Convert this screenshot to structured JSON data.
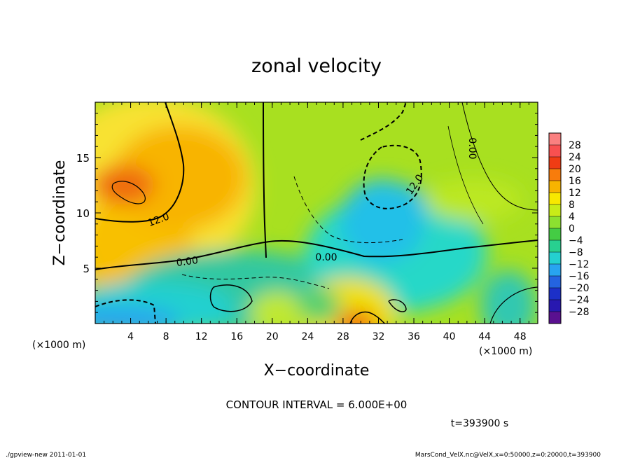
{
  "chart_data": {
    "type": "heatmap",
    "title": "zonal velocity",
    "xlabel": "X−coordinate",
    "ylabel": "Z−coordinate",
    "x_unit_label": "(×1000 m)",
    "y_unit_label": "(×1000 m)",
    "xlim": [
      0,
      50
    ],
    "ylim": [
      0,
      20
    ],
    "x_ticks": [
      "4",
      "8",
      "12",
      "16",
      "20",
      "24",
      "28",
      "32",
      "36",
      "40",
      "44",
      "48"
    ],
    "y_ticks": [
      "5",
      "10",
      "15"
    ],
    "contour_interval_text": "CONTOUR INTERVAL = 6.000E+00",
    "time_text": "t=393900 s",
    "contour_labels": [
      "12.0",
      "0.00",
      "0.00",
      "12.0",
      "0.00"
    ],
    "colorbar": {
      "labels": [
        "28",
        "24",
        "20",
        "16",
        "12",
        "8",
        "4",
        "0",
        "−4",
        "−8",
        "−12",
        "−16",
        "−20",
        "−24",
        "−28"
      ],
      "colors": [
        "#fa8080",
        "#f85050",
        "#f03c14",
        "#f87c0c",
        "#f8b400",
        "#f8e800",
        "#c8ec18",
        "#8ce030",
        "#44cc44",
        "#28d090",
        "#24d0d0",
        "#28a4f0",
        "#2464e0",
        "#1c30c8",
        "#2818b0",
        "#5a1090"
      ]
    },
    "colors": {
      "positive_strong": "#ef6a10",
      "positive": "#f8c000",
      "neutral": "#8ce030",
      "negative": "#24d0d0",
      "negative_strong": "#28a4f0"
    }
  },
  "footer": {
    "left": "./gpview-new   2011-01-01",
    "right": "MarsCond_VelX.nc@VelX,x=0:50000,z=0:20000,t=393900"
  }
}
